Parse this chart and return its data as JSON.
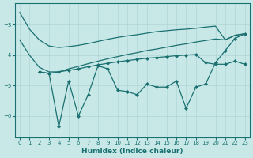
{
  "xlabel": "Humidex (Indice chaleur)",
  "background_color": "#c8e8e8",
  "line_color": "#1a7070",
  "xlim": [
    -0.5,
    23.5
  ],
  "ylim": [
    -6.7,
    -2.3
  ],
  "yticks": [
    -6,
    -5,
    -4,
    -3
  ],
  "xticks": [
    0,
    1,
    2,
    3,
    4,
    5,
    6,
    7,
    8,
    9,
    10,
    11,
    12,
    13,
    14,
    15,
    16,
    17,
    18,
    19,
    20,
    21,
    22,
    23
  ],
  "line1": {
    "points": [
      [
        0,
        -2.6
      ],
      [
        1,
        -3.15
      ],
      [
        2,
        -3.5
      ],
      [
        3,
        -3.7
      ],
      [
        4,
        -3.75
      ],
      [
        5,
        -3.72
      ],
      [
        6,
        -3.68
      ],
      [
        7,
        -3.62
      ],
      [
        8,
        -3.55
      ],
      [
        9,
        -3.48
      ],
      [
        10,
        -3.42
      ],
      [
        11,
        -3.37
      ],
      [
        12,
        -3.33
      ],
      [
        13,
        -3.28
      ],
      [
        14,
        -3.23
      ],
      [
        15,
        -3.2
      ],
      [
        16,
        -3.17
      ],
      [
        17,
        -3.15
      ],
      [
        18,
        -3.12
      ],
      [
        19,
        -3.08
      ],
      [
        20,
        -3.05
      ],
      [
        21,
        -3.5
      ],
      [
        22,
        -3.35
      ],
      [
        23,
        -3.3
      ]
    ],
    "marker": null
  },
  "line2": {
    "points": [
      [
        0,
        -3.5
      ],
      [
        1,
        -4.0
      ],
      [
        2,
        -4.4
      ],
      [
        3,
        -4.55
      ],
      [
        4,
        -4.55
      ],
      [
        5,
        -4.45
      ],
      [
        6,
        -4.37
      ],
      [
        7,
        -4.28
      ],
      [
        8,
        -4.2
      ],
      [
        9,
        -4.12
      ],
      [
        10,
        -4.05
      ],
      [
        11,
        -3.98
      ],
      [
        12,
        -3.92
      ],
      [
        13,
        -3.85
      ],
      [
        14,
        -3.8
      ],
      [
        15,
        -3.74
      ],
      [
        16,
        -3.68
      ],
      [
        17,
        -3.63
      ],
      [
        18,
        -3.57
      ],
      [
        19,
        -3.52
      ],
      [
        20,
        -3.47
      ],
      [
        21,
        -3.5
      ],
      [
        22,
        -3.35
      ],
      [
        23,
        -3.3
      ]
    ],
    "marker": null
  },
  "line3": {
    "points": [
      [
        2,
        -4.55
      ],
      [
        3,
        -4.6
      ],
      [
        4,
        -4.55
      ],
      [
        5,
        -4.5
      ],
      [
        6,
        -4.45
      ],
      [
        7,
        -4.38
      ],
      [
        8,
        -4.32
      ],
      [
        9,
        -4.27
      ],
      [
        10,
        -4.22
      ],
      [
        11,
        -4.18
      ],
      [
        12,
        -4.14
      ],
      [
        13,
        -4.1
      ],
      [
        14,
        -4.08
      ],
      [
        15,
        -4.05
      ],
      [
        16,
        -4.02
      ],
      [
        17,
        -4.0
      ],
      [
        18,
        -3.98
      ],
      [
        19,
        -4.25
      ],
      [
        20,
        -4.3
      ],
      [
        21,
        -4.3
      ],
      [
        22,
        -4.2
      ],
      [
        23,
        -4.3
      ]
    ],
    "marker": "D"
  },
  "line4": {
    "points": [
      [
        2,
        -4.55
      ],
      [
        3,
        -4.6
      ],
      [
        4,
        -6.35
      ],
      [
        5,
        -4.85
      ],
      [
        6,
        -6.0
      ],
      [
        7,
        -5.3
      ],
      [
        8,
        -4.35
      ],
      [
        9,
        -4.45
      ],
      [
        10,
        -5.15
      ],
      [
        11,
        -5.2
      ],
      [
        12,
        -5.3
      ],
      [
        13,
        -4.95
      ],
      [
        14,
        -5.05
      ],
      [
        15,
        -5.05
      ],
      [
        16,
        -4.85
      ],
      [
        17,
        -5.75
      ],
      [
        18,
        -5.05
      ],
      [
        19,
        -4.95
      ],
      [
        20,
        -4.25
      ],
      [
        21,
        -3.85
      ],
      [
        22,
        -3.45
      ],
      [
        23,
        -3.3
      ]
    ],
    "marker": "D"
  }
}
